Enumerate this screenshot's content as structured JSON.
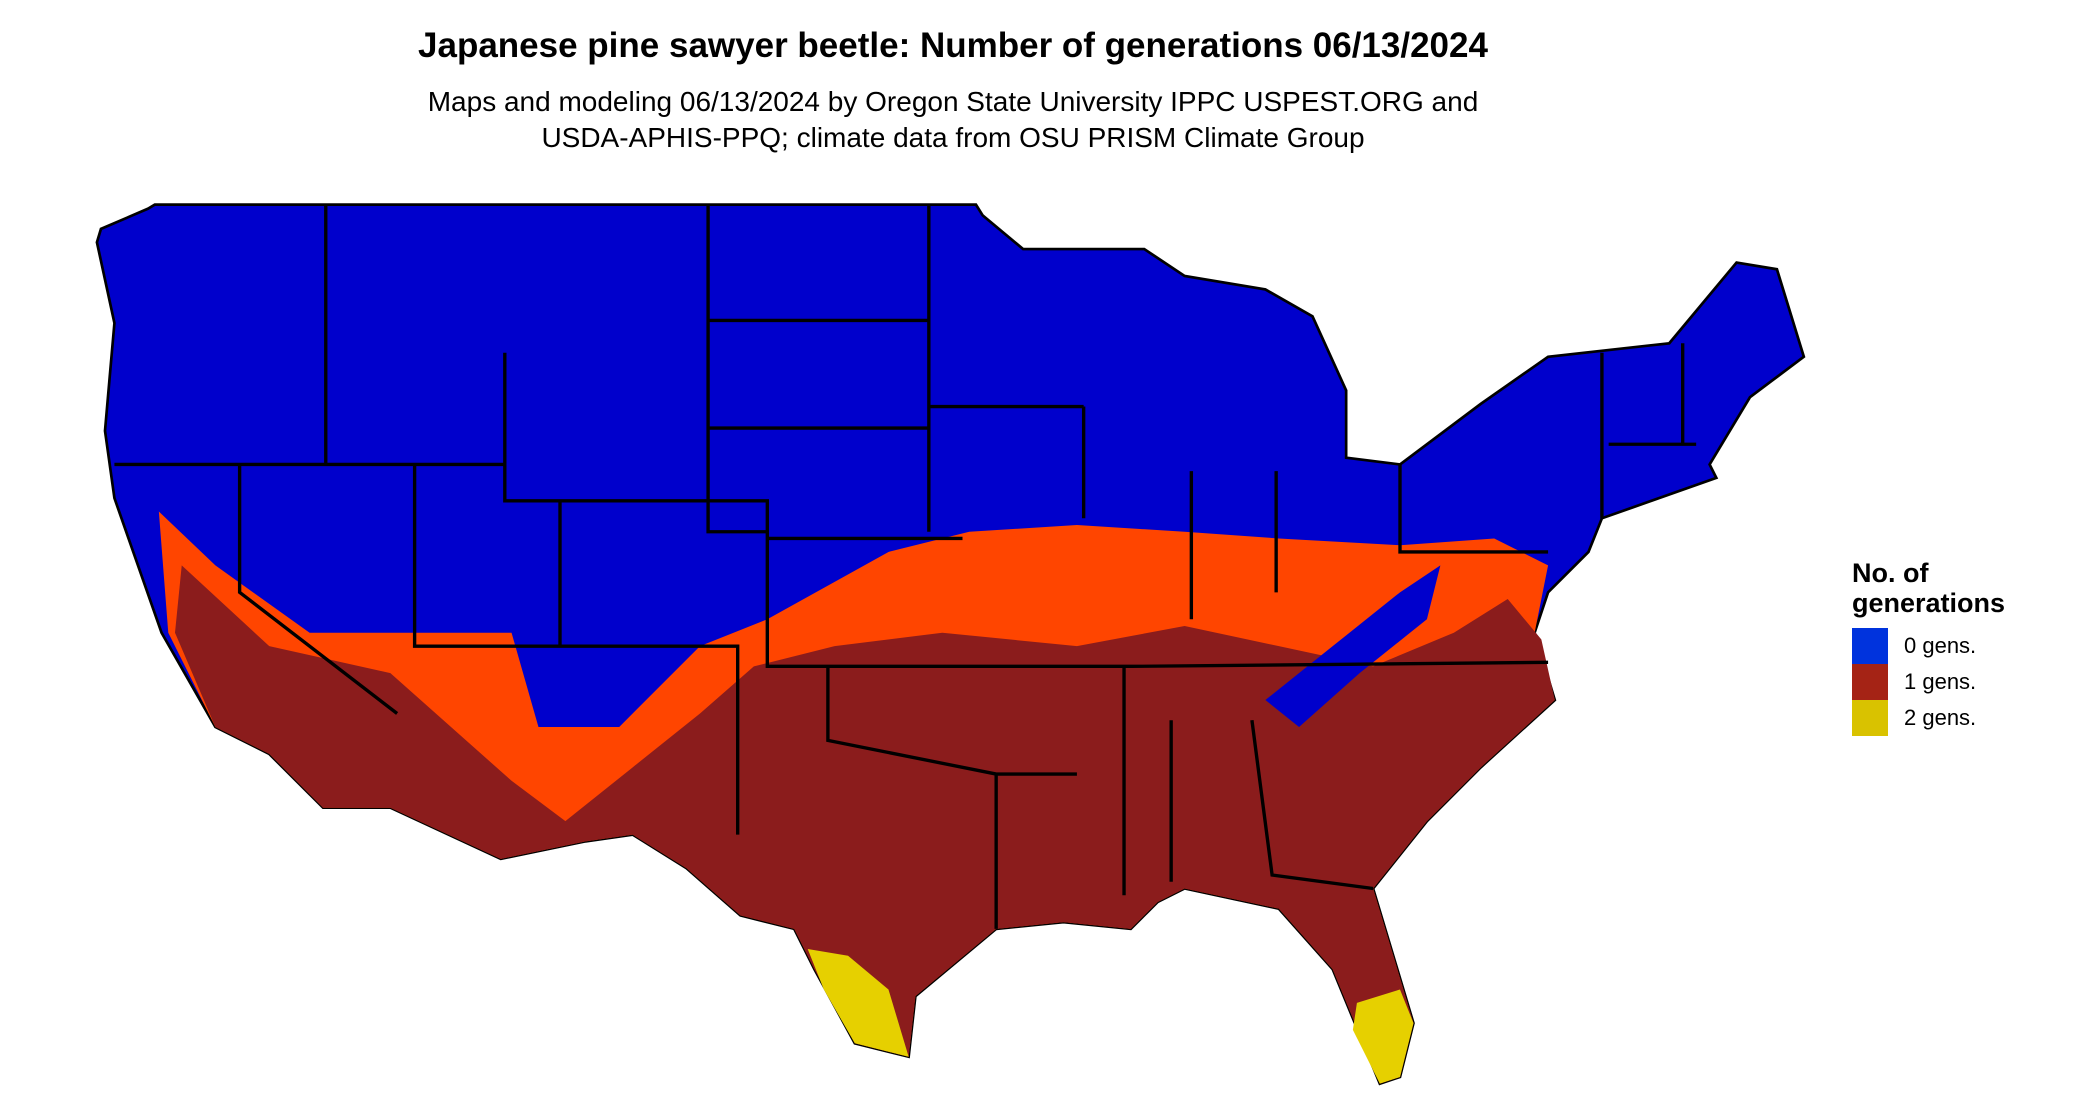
{
  "title": "Japanese pine sawyer beetle: Number of generations 06/13/2024",
  "subtitle_line1": "Maps and modeling 06/13/2024 by Oregon State University IPPC USPEST.ORG and",
  "subtitle_line2": "USDA-APHIS-PPQ; climate data from OSU PRISM Climate Group",
  "legend": {
    "title_line1": "No. of",
    "title_line2": "generations",
    "items": [
      {
        "label": "0 gens.",
        "color": "#0033dd"
      },
      {
        "label": "1 gens.",
        "color": "#a52315"
      },
      {
        "label": "2 gens.",
        "color": "#d9c200"
      }
    ]
  },
  "colors": {
    "zero": "#0000cc",
    "one": "#8b1c1c",
    "one_transition": "#ff4500",
    "two": "#e6d000"
  },
  "region": "Contiguous United States"
}
